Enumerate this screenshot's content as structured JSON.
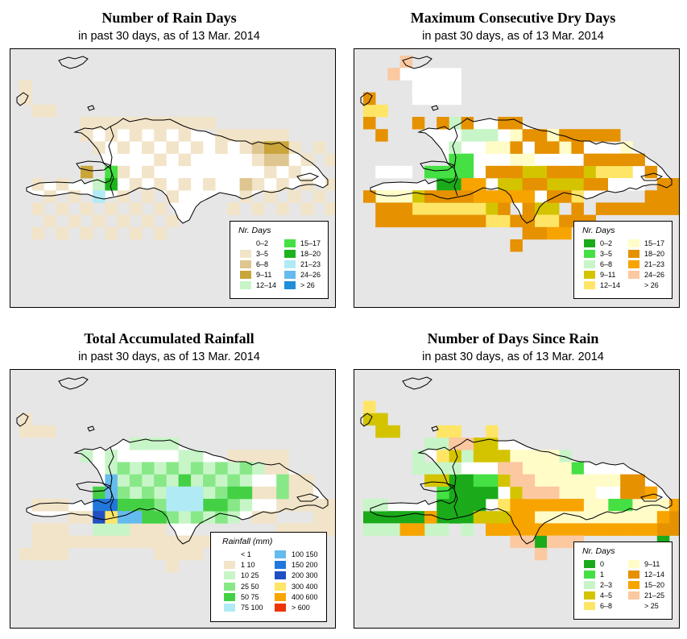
{
  "panels": [
    {
      "title": "Number of Rain Days",
      "subtitle": "in past 30 days, as of  13 Mar. 2014",
      "legend": {
        "title": "Nr. Days",
        "entries": [
          {
            "label": "0–2",
            "color": "#ffffff"
          },
          {
            "label": "3–5",
            "color": "#f2e4c8"
          },
          {
            "label": "6–8",
            "color": "#dfc590"
          },
          {
            "label": "9–11",
            "color": "#c9a53a"
          },
          {
            "label": "12–14",
            "color": "#c8f5c8"
          },
          {
            "label": "15–17",
            "color": "#44e044"
          },
          {
            "label": "18–20",
            "color": "#1db31d"
          },
          {
            "label": "21–23",
            "color": "#b0ebf5"
          },
          {
            "label": "24–26",
            "color": "#66bbee"
          },
          {
            "label": "> 26",
            "color": "#1f8fd8"
          }
        ]
      }
    },
    {
      "title": "Maximum Consecutive Dry Days",
      "subtitle": "in past 30 days, as of  13 Mar. 2014",
      "legend": {
        "title": "Nr. Days",
        "entries": [
          {
            "label": "0–2",
            "color": "#1aaa1a"
          },
          {
            "label": "3–5",
            "color": "#44e044"
          },
          {
            "label": "6–8",
            "color": "#c8f5c8"
          },
          {
            "label": "9–11",
            "color": "#d4c400"
          },
          {
            "label": "12–14",
            "color": "#ffe566"
          },
          {
            "label": "15–17",
            "color": "#fffcc8"
          },
          {
            "label": "18–20",
            "color": "#e59100"
          },
          {
            "label": "21–23",
            "color": "#f7a400"
          },
          {
            "label": "24–26",
            "color": "#fbc8a0"
          },
          {
            "label": "> 26",
            "color": "#ffffff"
          }
        ]
      }
    },
    {
      "title": "Total Accumulated Rainfall",
      "subtitle": "in past 30 days, as of  13 Mar. 2014",
      "legend": {
        "title": "Rainfall (mm)",
        "entries": [
          {
            "label": "< 1",
            "color": "#ffffff"
          },
          {
            "label": "1    10",
            "color": "#f2e4c8"
          },
          {
            "label": "10    25",
            "color": "#c8f5c8"
          },
          {
            "label": "25    50",
            "color": "#88e888"
          },
          {
            "label": "50    75",
            "color": "#44d044"
          },
          {
            "label": "75   100",
            "color": "#b0ebf5"
          },
          {
            "label": "100   150",
            "color": "#66bbee"
          },
          {
            "label": "150   200",
            "color": "#2277dd"
          },
          {
            "label": "200   300",
            "color": "#1f4fc0"
          },
          {
            "label": "300   400",
            "color": "#ffe566"
          },
          {
            "label": "400   600",
            "color": "#f7a400"
          },
          {
            "label": "> 600",
            "color": "#ee3300"
          }
        ]
      }
    },
    {
      "title": "Number of Days Since Rain",
      "subtitle": "in past 30 days, as of  13 Mar. 2014",
      "legend": {
        "title": "Nr. Days",
        "entries": [
          {
            "label": "0",
            "color": "#1aaa1a"
          },
          {
            "label": "1",
            "color": "#44e044"
          },
          {
            "label": "2–3",
            "color": "#c8f5c8"
          },
          {
            "label": "4–5",
            "color": "#d4c400"
          },
          {
            "label": "6–8",
            "color": "#ffe566"
          },
          {
            "label": "9–11",
            "color": "#fffcc8"
          },
          {
            "label": "12–14",
            "color": "#e59100"
          },
          {
            "label": "15–20",
            "color": "#f7a400"
          },
          {
            "label": "21–25",
            "color": "#fbc8a0"
          },
          {
            "label": "> 25",
            "color": "#ffffff"
          }
        ]
      }
    }
  ]
}
